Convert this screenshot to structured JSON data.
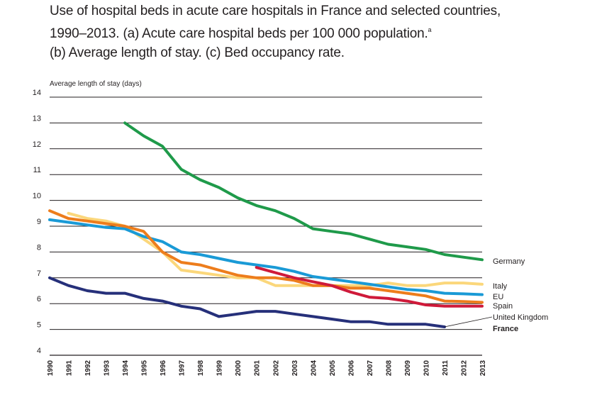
{
  "title": {
    "line1": "Use of hospital beds in acute care hospitals in France and selected countries,",
    "line2_prefix": "1990–2013. (a) Acute care hospital beds per 100 000 population.",
    "line2_sup": "a",
    "line3": "(b) Average length of stay. (c) Bed occupancy rate."
  },
  "chart_data": {
    "type": "line",
    "title": "Use of hospital beds in acute care hospitals in France and selected countries, 1990–2013. (a) Acute care hospital beds per 100 000 population. (b) Average length of stay. (c) Bed occupancy rate.",
    "ylabel": "Average length of stay (days)",
    "xlabel": "",
    "ylim": [
      4,
      14
    ],
    "yticks": [
      4,
      5,
      6,
      7,
      8,
      9,
      10,
      11,
      12,
      13,
      14
    ],
    "x": [
      "1990",
      "1991",
      "1992",
      "1993",
      "1994",
      "1995",
      "1996",
      "1997",
      "1998",
      "1999",
      "2000",
      "2001",
      "2002",
      "2003",
      "2004",
      "2005",
      "2006",
      "2007",
      "2008",
      "2009",
      "2010",
      "2011",
      "2012",
      "2013"
    ],
    "grid": "horizontal",
    "legend_placement": "right",
    "series": [
      {
        "name": "Germany",
        "color": "#1f9a4a",
        "bold": false,
        "values": [
          null,
          null,
          null,
          null,
          13.0,
          12.5,
          12.1,
          11.2,
          10.8,
          10.5,
          10.1,
          9.8,
          9.6,
          9.3,
          8.9,
          8.8,
          8.7,
          8.5,
          8.3,
          8.2,
          8.1,
          7.9,
          7.8,
          7.7
        ]
      },
      {
        "name": "Italy",
        "color": "#fbd77b",
        "bold": false,
        "values": [
          null,
          9.5,
          9.3,
          9.2,
          9.0,
          8.5,
          8.0,
          7.3,
          7.2,
          7.1,
          7.0,
          7.0,
          6.7,
          6.7,
          6.7,
          6.7,
          6.7,
          6.7,
          6.8,
          6.7,
          6.7,
          6.8,
          6.8,
          6.75
        ]
      },
      {
        "name": "EU",
        "color": "#1a9ad6",
        "bold": false,
        "values": [
          9.25,
          9.15,
          9.05,
          8.95,
          8.9,
          8.6,
          8.4,
          8.0,
          7.9,
          7.75,
          7.6,
          7.5,
          7.4,
          7.25,
          7.05,
          6.95,
          6.85,
          6.75,
          6.65,
          6.55,
          6.5,
          6.4,
          6.38,
          6.35
        ]
      },
      {
        "name": "Spain",
        "color": "#ed7d1c",
        "bold": false,
        "values": [
          9.6,
          9.3,
          9.2,
          9.1,
          9.0,
          8.8,
          8.0,
          7.6,
          7.5,
          7.3,
          7.1,
          7.0,
          7.0,
          6.9,
          6.7,
          6.7,
          6.6,
          6.6,
          6.5,
          6.4,
          6.3,
          6.1,
          6.08,
          6.05
        ]
      },
      {
        "name": "United Kingdom",
        "color": "#cf1a3a",
        "bold": false,
        "values": [
          null,
          null,
          null,
          null,
          null,
          null,
          null,
          null,
          null,
          null,
          null,
          7.4,
          7.2,
          7.0,
          6.85,
          6.7,
          6.45,
          6.25,
          6.2,
          6.1,
          5.95,
          5.9,
          5.9,
          5.9
        ]
      },
      {
        "name": "France",
        "color": "#26307a",
        "bold": true,
        "values": [
          7.0,
          6.7,
          6.5,
          6.4,
          6.4,
          6.2,
          6.1,
          5.9,
          5.8,
          5.5,
          5.6,
          5.7,
          5.7,
          5.6,
          5.5,
          5.4,
          5.3,
          5.3,
          5.2,
          5.2,
          5.2,
          5.1,
          null,
          null
        ]
      }
    ]
  }
}
